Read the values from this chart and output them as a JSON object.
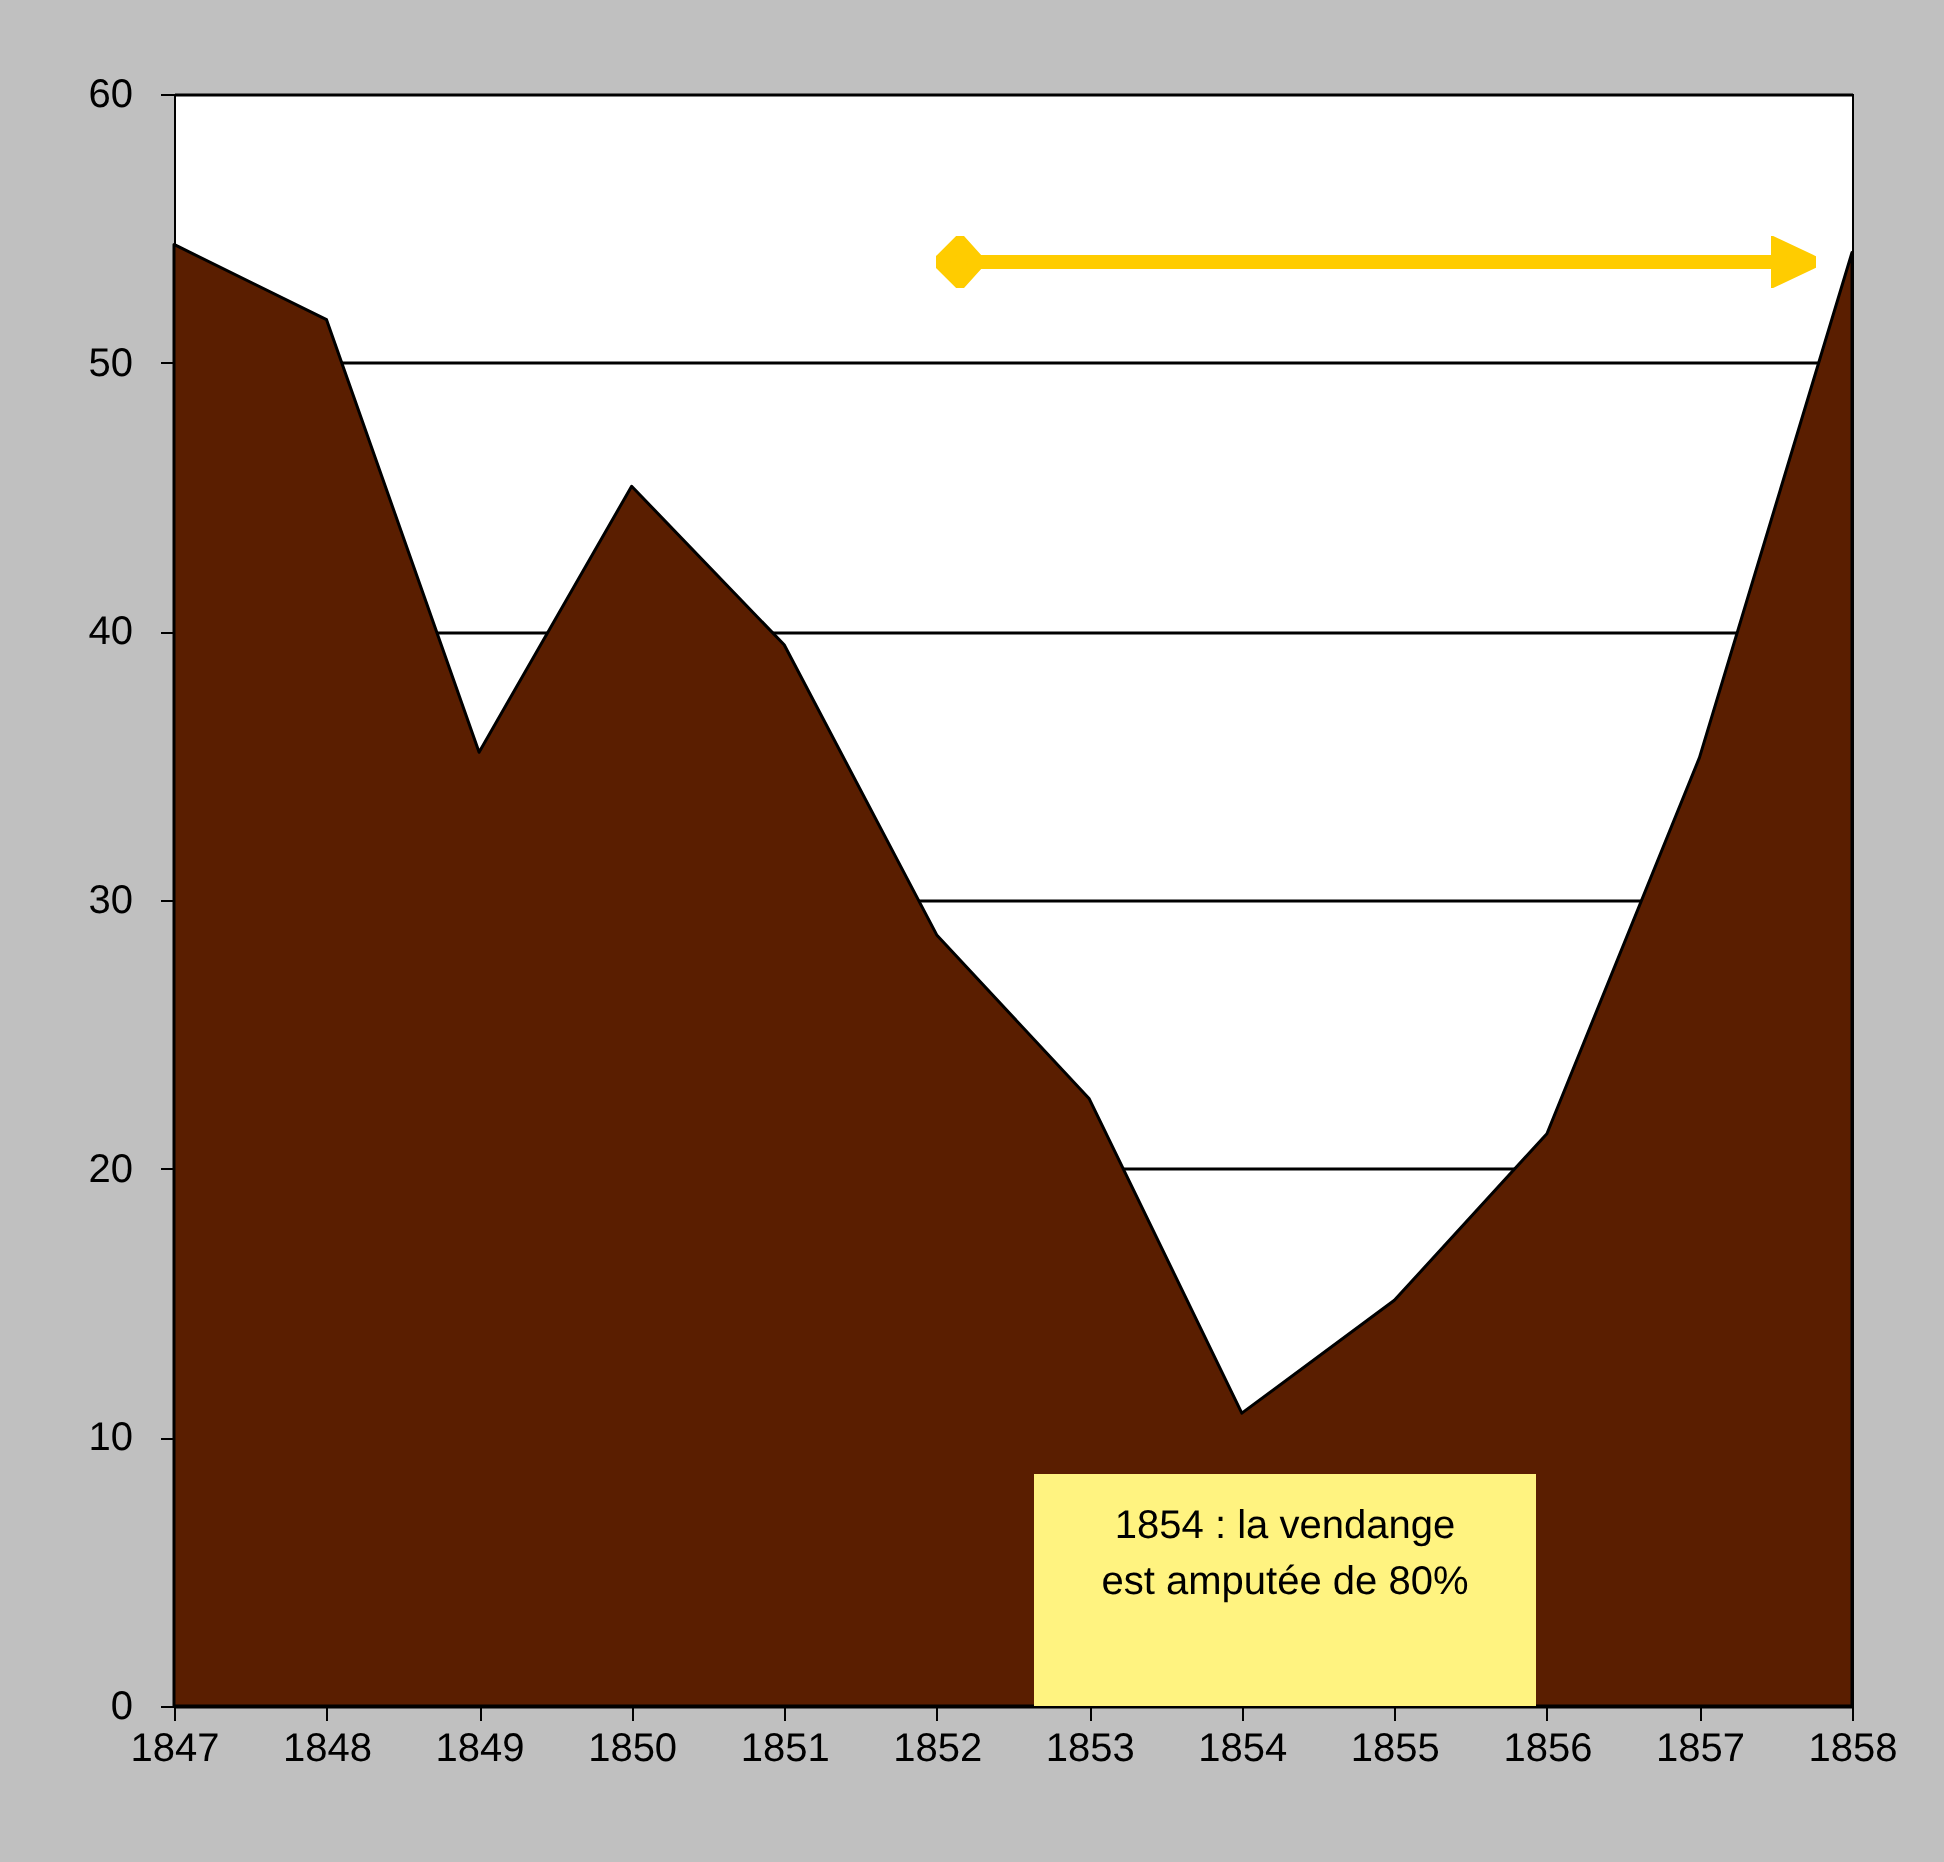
{
  "chart_data": {
    "type": "area",
    "categories": [
      "1847",
      "1848",
      "1849",
      "1850",
      "1851",
      "1852",
      "1853",
      "1854",
      "1855",
      "1856",
      "1857",
      "1858"
    ],
    "values": [
      54.4,
      51.6,
      35.5,
      45.4,
      39.5,
      28.7,
      22.6,
      10.9,
      15.1,
      21.3,
      35.3,
      54.1
    ],
    "color": "#5a1e00",
    "ylim": [
      0,
      60
    ],
    "yticks": [
      0,
      10,
      20,
      30,
      40,
      50,
      60
    ],
    "grid": "y",
    "annotations": [
      "1854 : la vendange est amputée de 80%"
    ]
  }
}
